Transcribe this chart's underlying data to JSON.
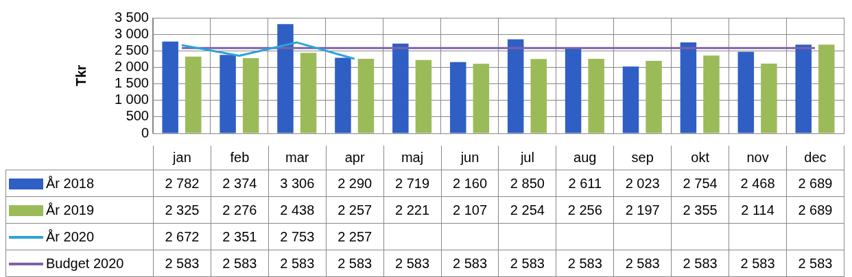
{
  "chart_data": {
    "type": "bar",
    "ylabel": "Tkr",
    "categories": [
      "jan",
      "feb",
      "mar",
      "apr",
      "maj",
      "jun",
      "jul",
      "aug",
      "sep",
      "okt",
      "nov",
      "dec"
    ],
    "series": [
      {
        "name": "År 2018",
        "color": "#2f5fc4",
        "values": [
          2782,
          2374,
          3306,
          2290,
          2719,
          2160,
          2850,
          2611,
          2023,
          2754,
          2468,
          2689
        ],
        "value_labels": [
          "2 782",
          "2 374",
          "3 306",
          "2 290",
          "2 719",
          "2 160",
          "2 850",
          "2 611",
          "2 023",
          "2 754",
          "2 468",
          "2 689"
        ]
      },
      {
        "name": "År 2019",
        "color": "#9bbb59",
        "values": [
          2325,
          2276,
          2438,
          2257,
          2221,
          2107,
          2254,
          2256,
          2197,
          2355,
          2114,
          2689
        ],
        "value_labels": [
          "2 325",
          "2 276",
          "2 438",
          "2 257",
          "2 221",
          "2 107",
          "2 254",
          "2 256",
          "2 197",
          "2 355",
          "2 114",
          "2 689"
        ]
      },
      {
        "name": "År 2020",
        "type": "line",
        "color": "#2ea3dc",
        "values": [
          2672,
          2351,
          2753,
          2257,
          null,
          null,
          null,
          null,
          null,
          null,
          null,
          null
        ],
        "value_labels": [
          "2 672",
          "2 351",
          "2 753",
          "2 257",
          null,
          null,
          null,
          null,
          null,
          null,
          null,
          null
        ]
      },
      {
        "name": "Budget 2020",
        "type": "line",
        "color": "#7d62a8",
        "values": [
          2583,
          2583,
          2583,
          2583,
          2583,
          2583,
          2583,
          2583,
          2583,
          2583,
          2583,
          2583
        ],
        "value_labels": [
          "2 583",
          "2 583",
          "2 583",
          "2 583",
          "2 583",
          "2 583",
          "2 583",
          "2 583",
          "2 583",
          "2 583",
          "2 583",
          "2 583"
        ]
      }
    ],
    "ylim": [
      0,
      3500
    ],
    "yticks": [
      0,
      500,
      {
        "value": 1000,
        "label": "1 000"
      },
      {
        "value": 1500,
        "label": "1 500"
      },
      {
        "value": 2000,
        "label": "2 000"
      },
      {
        "value": 2500,
        "label": "2 500"
      },
      {
        "value": 3000,
        "label": "3 000"
      },
      {
        "value": 3500,
        "label": "3 500"
      }
    ],
    "grid": true,
    "legend": "bottom left",
    "marker": "none",
    "line_style": "solid"
  }
}
